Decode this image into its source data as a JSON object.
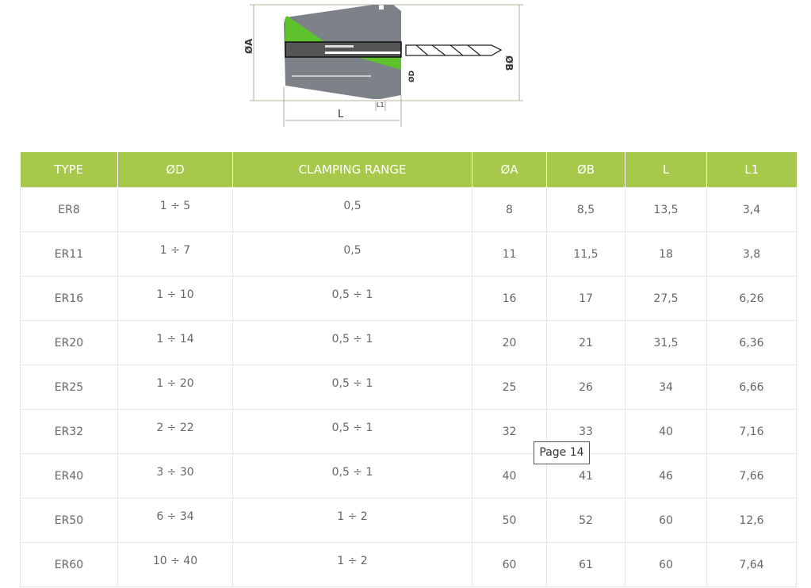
{
  "diagram": {
    "labels": {
      "a": "ØA",
      "b": "ØB",
      "d": "ØD",
      "l": "L",
      "l1": "L1"
    },
    "accent": "#5ec22c"
  },
  "table": {
    "header_color": "#a6c94b",
    "columns": [
      "TYPE",
      "ØD",
      "CLAMPING RANGE",
      "ØA",
      "ØB",
      "L",
      "L1"
    ],
    "rows": [
      [
        "ER8",
        "1 ÷ 5",
        "0,5",
        "8",
        "8,5",
        "13,5",
        "3,4"
      ],
      [
        "ER11",
        "1 ÷ 7",
        "0,5",
        "11",
        "11,5",
        "18",
        "3,8"
      ],
      [
        "ER16",
        "1 ÷ 10",
        "0,5 ÷ 1",
        "16",
        "17",
        "27,5",
        "6,26"
      ],
      [
        "ER20",
        "1 ÷ 14",
        "0,5 ÷ 1",
        "20",
        "21",
        "31,5",
        "6,36"
      ],
      [
        "ER25",
        "1 ÷ 20",
        "0,5 ÷ 1",
        "25",
        "26",
        "34",
        "6,66"
      ],
      [
        "ER32",
        "2 ÷ 22",
        "0,5 ÷ 1",
        "32",
        "33",
        "40",
        "7,16"
      ],
      [
        "ER40",
        "3 ÷ 30",
        "0,5 ÷ 1",
        "40",
        "41",
        "46",
        "7,66"
      ],
      [
        "ER50",
        "6 ÷ 34",
        "1 ÷ 2",
        "50",
        "52",
        "60",
        "12,6"
      ],
      [
        "ER60",
        "10 ÷ 40",
        "1 ÷ 2",
        "60",
        "61",
        "60",
        "7,64"
      ]
    ]
  },
  "tooltip": "Page 14"
}
